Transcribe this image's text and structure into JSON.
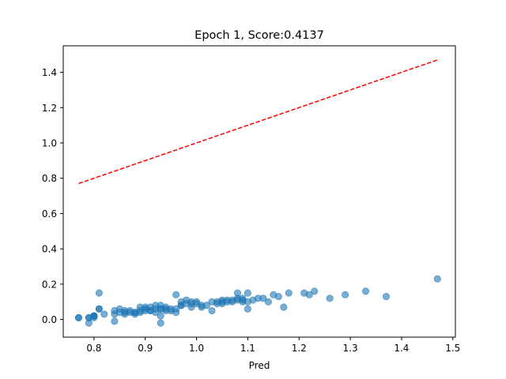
{
  "chart_data": {
    "type": "scatter",
    "title": "Epoch 1, Score:0.4137",
    "xlabel": "Pred",
    "ylabel": "",
    "xlim": [
      0.74,
      1.505
    ],
    "ylim": [
      -0.1,
      1.55
    ],
    "xticks": [
      0.8,
      0.9,
      1.0,
      1.1,
      1.2,
      1.3,
      1.4,
      1.5
    ],
    "yticks": [
      0.0,
      0.2,
      0.4,
      0.6,
      0.8,
      1.0,
      1.2,
      1.4
    ],
    "grid": false,
    "colors": {
      "points": "#1f77b4",
      "reference_line": "#ff0000"
    },
    "reference_line": {
      "x": [
        0.77,
        1.47
      ],
      "y": [
        0.77,
        1.47
      ],
      "style": "dashed"
    },
    "series": [
      {
        "x": [
          0.77,
          0.77,
          0.79,
          0.79,
          0.8,
          0.8,
          0.8,
          0.81,
          0.81,
          0.81,
          0.82,
          0.84,
          0.84,
          0.85,
          0.85,
          0.86,
          0.86,
          0.87,
          0.87,
          0.88,
          0.88,
          0.89,
          0.89,
          0.89,
          0.9,
          0.9,
          0.9,
          0.91,
          0.91,
          0.92,
          0.92,
          0.92,
          0.93,
          0.93,
          0.93,
          0.94,
          0.94,
          0.94,
          0.95,
          0.96,
          0.96,
          0.96,
          0.97,
          0.97,
          0.98,
          0.98,
          0.99,
          0.99,
          1.0,
          1.0,
          1.01,
          1.01,
          1.03,
          1.03,
          1.04,
          1.04,
          1.05,
          1.05,
          1.06,
          1.07,
          1.07,
          1.08,
          1.08,
          1.09,
          1.09,
          1.1,
          1.1,
          1.1,
          1.11,
          1.12,
          1.13,
          1.14,
          1.15,
          1.16,
          1.17,
          1.18,
          1.21,
          1.22,
          1.23,
          1.26,
          1.29,
          1.33,
          1.37,
          1.47,
          0.79,
          0.8,
          0.86,
          0.88,
          0.91,
          0.93,
          0.95,
          0.97,
          0.99,
          1.02,
          1.06,
          1.08,
          1.09,
          0.84,
          0.93,
          1.05
        ],
        "y": [
          0.01,
          0.01,
          0.01,
          -0.02,
          0.02,
          0.01,
          0.02,
          0.06,
          0.06,
          0.15,
          0.03,
          0.03,
          0.05,
          0.06,
          0.04,
          0.05,
          0.04,
          0.04,
          0.05,
          0.03,
          0.04,
          0.04,
          0.07,
          0.05,
          0.07,
          0.06,
          0.05,
          0.05,
          0.07,
          0.08,
          0.06,
          0.04,
          0.06,
          0.08,
          0.02,
          0.07,
          0.05,
          0.06,
          0.05,
          0.04,
          0.14,
          0.06,
          0.08,
          0.1,
          0.09,
          0.11,
          0.1,
          0.07,
          0.1,
          0.09,
          0.07,
          0.08,
          0.1,
          0.05,
          0.09,
          0.1,
          0.1,
          0.11,
          0.11,
          0.1,
          0.11,
          0.11,
          0.15,
          0.12,
          0.1,
          0.1,
          0.06,
          0.15,
          0.11,
          0.12,
          0.12,
          0.1,
          0.14,
          0.13,
          0.07,
          0.15,
          0.15,
          0.14,
          0.16,
          0.12,
          0.14,
          0.16,
          0.13,
          0.23,
          0.01,
          0.02,
          0.03,
          0.04,
          0.05,
          0.06,
          0.06,
          0.08,
          0.09,
          0.08,
          0.1,
          0.12,
          0.11,
          -0.01,
          -0.02,
          0.09
        ]
      }
    ]
  }
}
